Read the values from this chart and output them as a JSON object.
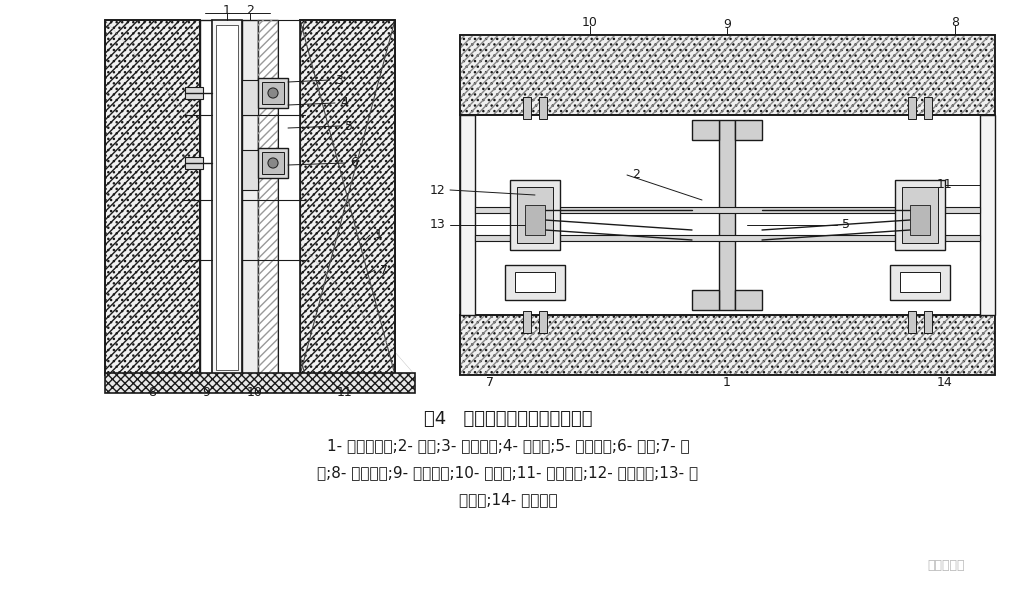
{
  "title": "图4   中青培大厦石材幕墙节点图",
  "cap1": "1- 不锈锂螺栓;2- 角销;3- 调整螺钉;4- 铝挂件;5- 抚芯铆钉;6- 背栓;7- 石",
  "cap2": "材;8- 土建结构;9- 平板埋件;10- 钉角码;11- 氧化铝板;12- 方销竝框;13- 连",
  "cap3": "接销件;14- 背栓横框",
  "watermark": "石材研习社",
  "bg": "#ffffff",
  "dc": "#1a1a1a"
}
